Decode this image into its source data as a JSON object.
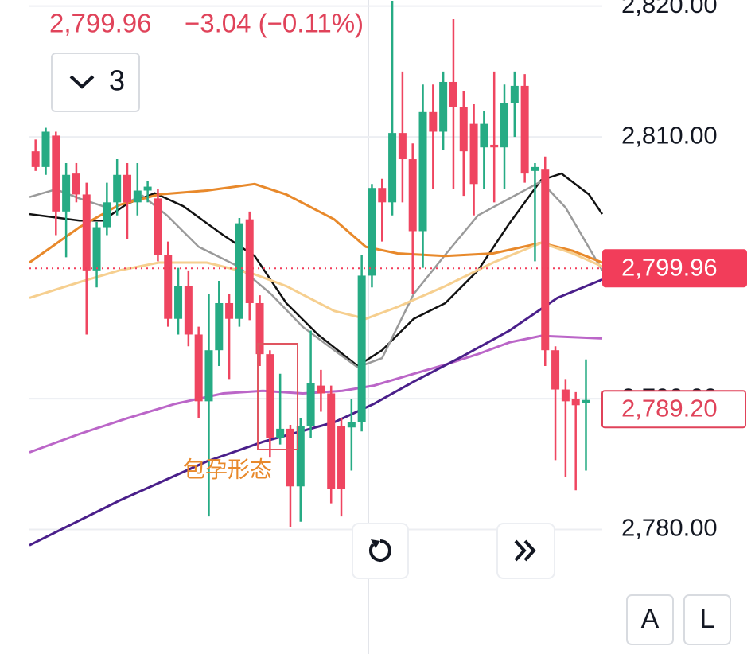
{
  "chart_data": {
    "type": "candlestick",
    "price": "2,799.96",
    "change": "−3.04 (−0.11%)",
    "indicator_button": "3",
    "annotation": "包孕形态",
    "buttons": [
      "A",
      "L"
    ],
    "up_color": "#26ab84",
    "down_color": "#ef4560",
    "xlim": [
      -0.6,
      55.6
    ],
    "ylim": [
      2770.49,
      2820.46
    ],
    "yticks": [
      {
        "value": 2780,
        "label": "2,780.00"
      },
      {
        "value": 2790,
        "label": "2,790.00"
      },
      {
        "value": 2810,
        "label": "2,810.00"
      },
      {
        "value": 2820,
        "label": "2,820.00"
      }
    ],
    "grid": true,
    "open": [
      2808.9,
      2807.7,
      2810.1,
      2804.3,
      2807.2,
      2805.6,
      2799.8,
      2803.1,
      2805,
      2807.1,
      2805,
      2805.9,
      2805.3,
      2801,
      2796.1,
      2798.6,
      2794.9,
      2789.8,
      2793.7,
      2797.3,
      2796.1,
      2803.7,
      2797.3,
      2793.4,
      2787,
      2787.7,
      2783.3,
      2787.9,
      2791,
      2790.4,
      2787.9,
      2787.8,
      2788.2,
      2799.4,
      2806.1,
      2805,
      2810.3,
      2808.3,
      2802.8,
      2811.9,
      2810.4,
      2814.2,
      2812.3,
      2811,
      2809.2,
      2809.4,
      2809.2,
      2812.6,
      2813.9,
      2807.4,
      2807.5,
      2793.7,
      2790.7,
      2790,
      2789.7
    ],
    "high": [
      2809.8,
      2810.7,
      2810.4,
      2808,
      2808,
      2806.5,
      2803.5,
      2806.5,
      2808.3,
      2808,
      2808,
      2806.6,
      2806,
      2802,
      2800,
      2799.8,
      2795.5,
      2798,
      2799,
      2798,
      2803.8,
      2804.3,
      2797.9,
      2793.7,
      2791.9,
      2788,
      2788.5,
      2795.2,
      2792.2,
      2791,
      2788.5,
      2790,
      2801,
      2806.4,
      2806.8,
      2820.4,
      2815,
      2809.5,
      2814,
      2814,
      2815,
      2819,
      2813.5,
      2812.5,
      2812,
      2815,
      2814,
      2815,
      2814.8,
      2808,
      2808.5,
      2794,
      2791.5,
      2790.5,
      2793
    ],
    "low": [
      2807.4,
      2807.1,
      2802.5,
      2800.8,
      2805,
      2794.9,
      2798.5,
      2802.5,
      2804,
      2802.2,
      2804,
      2805,
      2800.5,
      2795.5,
      2794.9,
      2794,
      2788.5,
      2781,
      2792.5,
      2791.5,
      2795.5,
      2796,
      2792.5,
      2785.5,
      2786.5,
      2780.2,
      2780.6,
      2787,
      2789,
      2782,
      2781,
      2784.5,
      2787.5,
      2798.5,
      2802,
      2804,
      2805,
      2798,
      2800,
      2806,
      2809,
      2806,
      2805.5,
      2804,
      2806,
      2805,
      2806,
      2810,
      2806.5,
      2800.5,
      2792.5,
      2785.3,
      2784,
      2783,
      2784.5
    ],
    "close": [
      2807.7,
      2810.4,
      2804.3,
      2807.1,
      2805.6,
      2799.8,
      2803.1,
      2805,
      2807.1,
      2805,
      2805.9,
      2806.2,
      2801,
      2796.1,
      2798.6,
      2794.9,
      2789.8,
      2793.7,
      2797.3,
      2796.1,
      2803.4,
      2797.3,
      2793.4,
      2787,
      2787.7,
      2783.3,
      2787.9,
      2791.2,
      2790.4,
      2783.1,
      2783.1,
      2788.2,
      2799.4,
      2806.1,
      2805,
      2810.3,
      2808.3,
      2802.8,
      2811.9,
      2810.4,
      2814.2,
      2812.3,
      2808.9,
      2806.4,
      2811,
      2809.2,
      2812.6,
      2813.9,
      2807.2,
      2807.7,
      2793.7,
      2790.7,
      2789.8,
      2789.5,
      2789.9
    ],
    "overlays": [
      {
        "color": "#111111",
        "x": [
          -0.6,
          4.3,
          6.6,
          9.0,
          11.7,
          14.5,
          18.4,
          21.5,
          24.6,
          27.7,
          31.6,
          34.0,
          37.1,
          40.2,
          43.4,
          46.5,
          49.6,
          51.6,
          54.3,
          55.6
        ],
        "values": [
          2804.1,
          2803.6,
          2803.6,
          2804.9,
          2805.7,
          2804.7,
          2802.5,
          2800.9,
          2797.3,
          2794.9,
          2792.5,
          2793.7,
          2796.1,
          2797.3,
          2799.8,
          2803.4,
          2806.7,
          2807.2,
          2805.6,
          2804.1
        ]
      },
      {
        "color": "#9a9a9a",
        "x": [
          -0.6,
          2.0,
          4.3,
          7.4,
          10.5,
          12.9,
          16.0,
          19.9,
          23.1,
          26.2,
          29.3,
          31.6,
          34.0,
          37.1,
          40.2,
          43.4,
          46.5,
          49.6,
          52.0,
          55.6
        ],
        "values": [
          2805.4,
          2806,
          2805.3,
          2804.5,
          2805.5,
          2804,
          2801.6,
          2800.1,
          2798,
          2795.5,
          2793.7,
          2792.4,
          2793.1,
          2798,
          2801,
          2804,
          2805.3,
          2806.6,
          2804.6,
          2799.8
        ]
      },
      {
        "color": "#e8892b",
        "x": [
          -0.6,
          4.3,
          8.2,
          12.1,
          16.8,
          21.5,
          24.6,
          29.3,
          32.4,
          35.5,
          40.2,
          44.9,
          49.6,
          52.7,
          55.6
        ],
        "values": [
          2800.4,
          2803.1,
          2804.8,
          2805.6,
          2805.9,
          2806.4,
          2805.6,
          2803.7,
          2801.6,
          2801.1,
          2800.9,
          2801.1,
          2801.9,
          2801.3,
          2800.4
        ]
      },
      {
        "color": "#f6cf8f",
        "x": [
          -0.6,
          4.3,
          8.2,
          12.1,
          16.8,
          21.5,
          24.6,
          29.3,
          32.4,
          35.5,
          40.2,
          44.9,
          49.6,
          52.7,
          55.6
        ],
        "values": [
          2797.7,
          2798.9,
          2799.8,
          2800.4,
          2800.4,
          2799.5,
          2798.6,
          2796.7,
          2796.1,
          2797,
          2798.6,
          2800.4,
          2801.9,
          2801.1,
          2800.1
        ]
      },
      {
        "color": "#bb66c8",
        "x": [
          -0.6,
          4.3,
          9.0,
          13.7,
          18.4,
          22.3,
          26.2,
          30.1,
          33.2,
          37.1,
          40.2,
          43.4,
          46.5,
          49.6,
          52.7,
          55.6
        ],
        "values": [
          2785.9,
          2787.3,
          2788.5,
          2789.6,
          2790.4,
          2790.6,
          2790.4,
          2790.6,
          2791,
          2791.9,
          2792.6,
          2793.4,
          2794.3,
          2794.8,
          2794.7,
          2794.6
        ]
      },
      {
        "color": "#4a1f8a",
        "x": [
          -0.6,
          8.2,
          16.8,
          22.3,
          29.3,
          33.2,
          37.1,
          41.8,
          46.5,
          51.2,
          55.6
        ],
        "values": [
          2778.8,
          2782.2,
          2785.2,
          2786.7,
          2788.2,
          2789.6,
          2791.3,
          2793.2,
          2795.2,
          2797.7,
          2799.1
        ]
      }
    ],
    "price_lines": [
      {
        "value": 2799.96,
        "label": "2,799.96",
        "style": "filled",
        "color": "#f23d5a"
      },
      {
        "value": 2789.2,
        "label": "2,789.20",
        "style": "outline",
        "color": "#e0435a"
      }
    ]
  }
}
